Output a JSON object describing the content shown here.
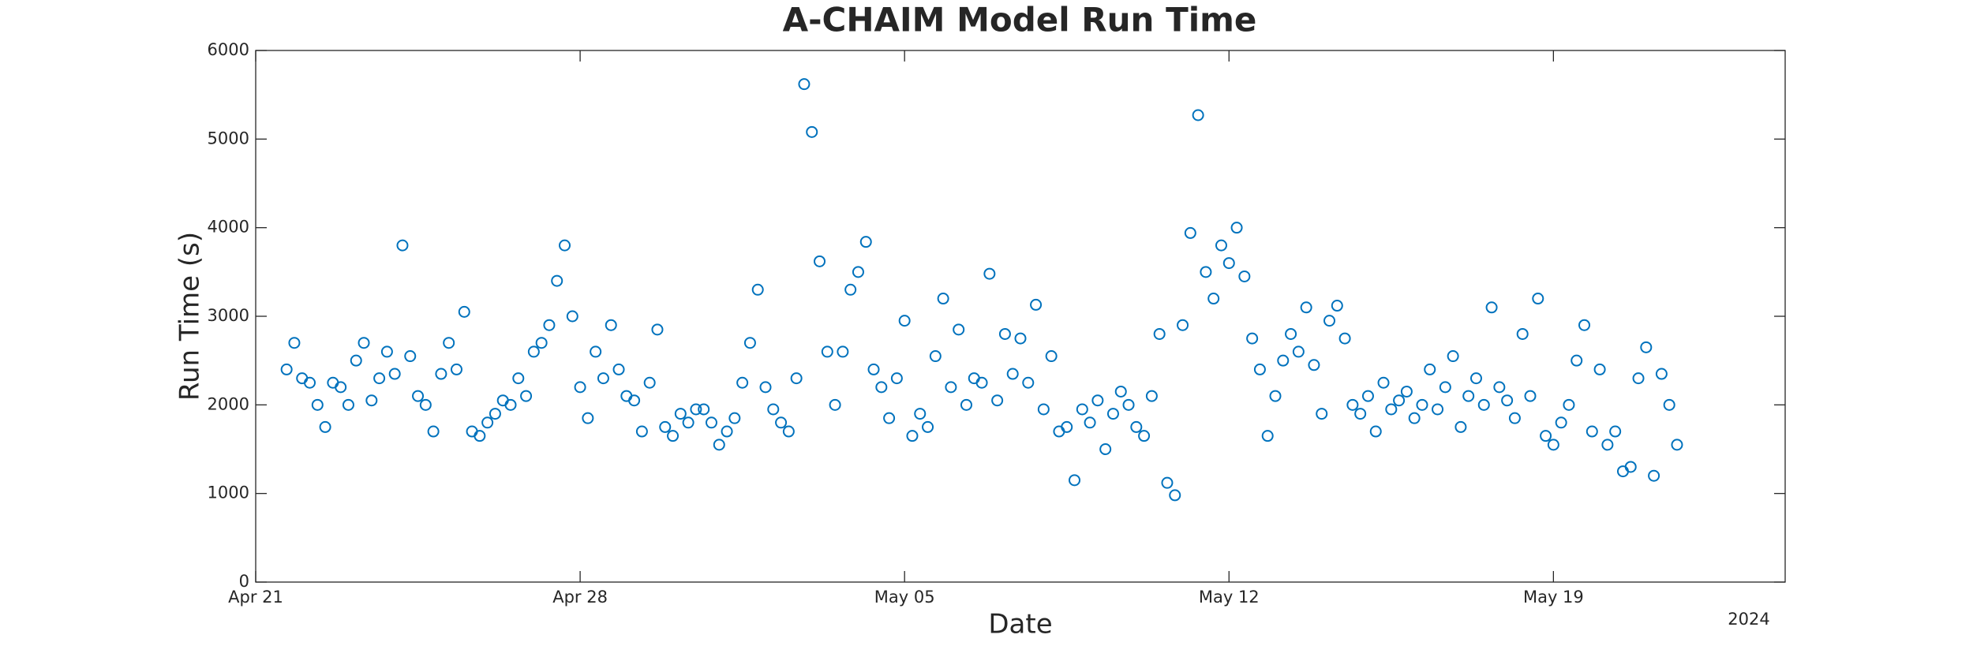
{
  "chart_data": {
    "type": "scatter",
    "title": "A-CHAIM Model Run Time",
    "x_label": "Date",
    "y_label": "Run Time (s)",
    "x_year_label": "2024",
    "color": "#0072BD",
    "marker": "open-circle",
    "xlim": [
      "2024-04-21T00:00",
      "2024-05-24T00:00"
    ],
    "xticks": [
      {
        "value": "2024-04-21T00:00",
        "label": "Apr 21"
      },
      {
        "value": "2024-04-28T00:00",
        "label": "Apr 28"
      },
      {
        "value": "2024-05-05T00:00",
        "label": "May 05"
      },
      {
        "value": "2024-05-12T00:00",
        "label": "May 12"
      },
      {
        "value": "2024-05-19T00:00",
        "label": "May 19"
      }
    ],
    "ylim": [
      0,
      6000
    ],
    "yticks": [
      0,
      1000,
      2000,
      3000,
      4000,
      5000,
      6000
    ],
    "series": [
      {
        "name": "Run Time",
        "color": "#0072BD",
        "x": [
          "2024-04-21T16:00",
          "2024-04-21T20:00",
          "2024-04-22T00:00",
          "2024-04-22T04:00",
          "2024-04-22T08:00",
          "2024-04-22T12:00",
          "2024-04-22T16:00",
          "2024-04-22T20:00",
          "2024-04-23T00:00",
          "2024-04-23T04:00",
          "2024-04-23T08:00",
          "2024-04-23T12:00",
          "2024-04-23T16:00",
          "2024-04-23T20:00",
          "2024-04-24T00:00",
          "2024-04-24T04:00",
          "2024-04-24T08:00",
          "2024-04-24T12:00",
          "2024-04-24T16:00",
          "2024-04-24T20:00",
          "2024-04-25T00:00",
          "2024-04-25T04:00",
          "2024-04-25T08:00",
          "2024-04-25T12:00",
          "2024-04-25T16:00",
          "2024-04-25T20:00",
          "2024-04-26T00:00",
          "2024-04-26T04:00",
          "2024-04-26T08:00",
          "2024-04-26T12:00",
          "2024-04-26T16:00",
          "2024-04-26T20:00",
          "2024-04-27T00:00",
          "2024-04-27T04:00",
          "2024-04-27T08:00",
          "2024-04-27T12:00",
          "2024-04-27T16:00",
          "2024-04-27T20:00",
          "2024-04-28T00:00",
          "2024-04-28T04:00",
          "2024-04-28T08:00",
          "2024-04-28T12:00",
          "2024-04-28T16:00",
          "2024-04-28T20:00",
          "2024-04-29T00:00",
          "2024-04-29T04:00",
          "2024-04-29T08:00",
          "2024-04-29T12:00",
          "2024-04-29T16:00",
          "2024-04-29T20:00",
          "2024-04-30T00:00",
          "2024-04-30T04:00",
          "2024-04-30T08:00",
          "2024-04-30T12:00",
          "2024-04-30T16:00",
          "2024-04-30T20:00",
          "2024-05-01T00:00",
          "2024-05-01T04:00",
          "2024-05-01T08:00",
          "2024-05-01T12:00",
          "2024-05-01T16:00",
          "2024-05-01T20:00",
          "2024-05-02T00:00",
          "2024-05-02T04:00",
          "2024-05-02T08:00",
          "2024-05-02T12:00",
          "2024-05-02T16:00",
          "2024-05-02T20:00",
          "2024-05-03T00:00",
          "2024-05-03T04:00",
          "2024-05-03T08:00",
          "2024-05-03T12:00",
          "2024-05-03T16:00",
          "2024-05-03T20:00",
          "2024-05-04T00:00",
          "2024-05-04T04:00",
          "2024-05-04T08:00",
          "2024-05-04T12:00",
          "2024-05-04T16:00",
          "2024-05-04T20:00",
          "2024-05-05T00:00",
          "2024-05-05T04:00",
          "2024-05-05T08:00",
          "2024-05-05T12:00",
          "2024-05-05T16:00",
          "2024-05-05T20:00",
          "2024-05-06T00:00",
          "2024-05-06T04:00",
          "2024-05-06T08:00",
          "2024-05-06T12:00",
          "2024-05-06T16:00",
          "2024-05-06T20:00",
          "2024-05-07T00:00",
          "2024-05-07T04:00",
          "2024-05-07T08:00",
          "2024-05-07T12:00",
          "2024-05-07T16:00",
          "2024-05-07T20:00",
          "2024-05-08T00:00",
          "2024-05-08T04:00",
          "2024-05-08T08:00",
          "2024-05-08T12:00",
          "2024-05-08T16:00",
          "2024-05-08T20:00",
          "2024-05-09T00:00",
          "2024-05-09T04:00",
          "2024-05-09T08:00",
          "2024-05-09T12:00",
          "2024-05-09T16:00",
          "2024-05-09T20:00",
          "2024-05-10T00:00",
          "2024-05-10T04:00",
          "2024-05-10T08:00",
          "2024-05-10T12:00",
          "2024-05-10T16:00",
          "2024-05-10T20:00",
          "2024-05-11T00:00",
          "2024-05-11T04:00",
          "2024-05-11T08:00",
          "2024-05-11T12:00",
          "2024-05-11T16:00",
          "2024-05-11T20:00",
          "2024-05-12T00:00",
          "2024-05-12T04:00",
          "2024-05-12T08:00",
          "2024-05-12T12:00",
          "2024-05-12T16:00",
          "2024-05-12T20:00",
          "2024-05-13T00:00",
          "2024-05-13T04:00",
          "2024-05-13T08:00",
          "2024-05-13T12:00",
          "2024-05-13T16:00",
          "2024-05-13T20:00",
          "2024-05-14T00:00",
          "2024-05-14T04:00",
          "2024-05-14T08:00",
          "2024-05-14T12:00",
          "2024-05-14T16:00",
          "2024-05-14T20:00",
          "2024-05-15T00:00",
          "2024-05-15T04:00",
          "2024-05-15T08:00",
          "2024-05-15T12:00",
          "2024-05-15T16:00",
          "2024-05-15T20:00",
          "2024-05-16T00:00",
          "2024-05-16T04:00",
          "2024-05-16T08:00",
          "2024-05-16T12:00",
          "2024-05-16T16:00",
          "2024-05-16T20:00",
          "2024-05-17T00:00",
          "2024-05-17T04:00",
          "2024-05-17T08:00",
          "2024-05-17T12:00",
          "2024-05-17T16:00",
          "2024-05-17T20:00",
          "2024-05-18T00:00",
          "2024-05-18T04:00",
          "2024-05-18T08:00",
          "2024-05-18T12:00",
          "2024-05-18T16:00",
          "2024-05-18T20:00",
          "2024-05-19T00:00",
          "2024-05-19T04:00",
          "2024-05-19T08:00",
          "2024-05-19T12:00",
          "2024-05-19T16:00",
          "2024-05-19T20:00",
          "2024-05-20T00:00",
          "2024-05-20T04:00",
          "2024-05-20T08:00",
          "2024-05-20T12:00",
          "2024-05-20T16:00",
          "2024-05-20T20:00",
          "2024-05-21T00:00",
          "2024-05-21T04:00",
          "2024-05-21T08:00",
          "2024-05-21T12:00",
          "2024-05-21T16:00"
        ],
        "values": [
          2400,
          2700,
          2300,
          2250,
          2000,
          1750,
          2250,
          2200,
          2000,
          2500,
          2700,
          2050,
          2300,
          2600,
          2350,
          3800,
          2550,
          2100,
          2000,
          1700,
          2350,
          2700,
          2400,
          3050,
          1700,
          1650,
          1800,
          1900,
          2050,
          2000,
          2300,
          2100,
          2600,
          2700,
          2900,
          3400,
          3800,
          3000,
          2200,
          1850,
          2600,
          2300,
          2900,
          2400,
          2100,
          2050,
          1700,
          2250,
          2850,
          1750,
          1650,
          1900,
          1800,
          1950,
          1950,
          1800,
          1550,
          1700,
          1850,
          2250,
          2700,
          3300,
          2200,
          1950,
          1800,
          1700,
          2300,
          5620,
          5080,
          3620,
          2600,
          2000,
          2600,
          3300,
          3500,
          3840,
          2400,
          2200,
          1850,
          2300,
          2950,
          1650,
          1900,
          1750,
          2550,
          3200,
          2200,
          2850,
          2000,
          2300,
          2250,
          3480,
          2050,
          2800,
          2350,
          2750,
          2250,
          3130,
          1950,
          2550,
          1700,
          1750,
          1150,
          1950,
          1800,
          2050,
          1500,
          1900,
          2150,
          2000,
          1750,
          1650,
          2100,
          2800,
          1120,
          980,
          2900,
          3940,
          5270,
          3500,
          3200,
          3800,
          3600,
          4000,
          3450,
          2750,
          2400,
          1650,
          2100,
          2500,
          2800,
          2600,
          3100,
          2450,
          1900,
          2950,
          3120,
          2750,
          2000,
          1900,
          2100,
          1700,
          2250,
          1950,
          2050,
          2150,
          1850,
          2000,
          2400,
          1950,
          2200,
          2550,
          1750,
          2100,
          2300,
          2000,
          3100,
          2200,
          2050,
          1850,
          2800,
          2100,
          3200,
          1650,
          1550,
          1800,
          2000,
          2500,
          2900,
          1700,
          2400,
          1550,
          1700,
          1250,
          1300,
          2300,
          2650,
          1200,
          2350,
          2000,
          1550
        ]
      }
    ]
  }
}
